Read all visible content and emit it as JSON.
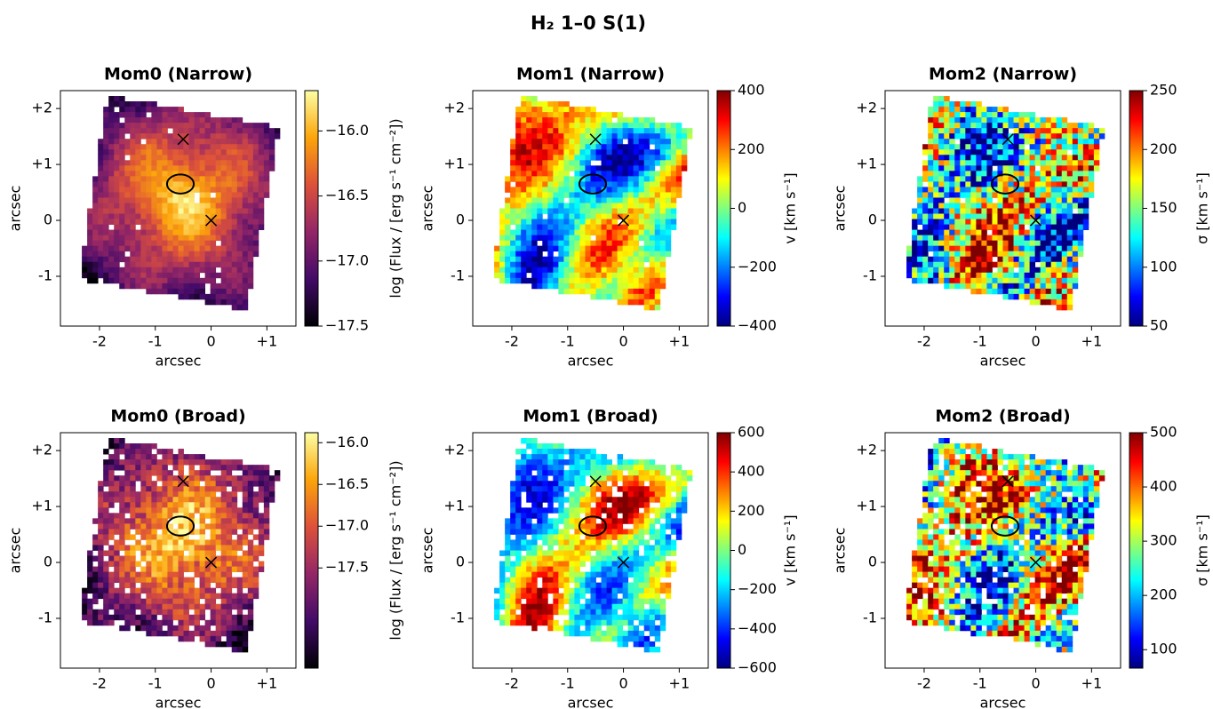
{
  "title": "H₂ 1–0 S(1)",
  "chart_data": [
    {
      "type": "heatmap",
      "title": "Mom0 (Narrow)",
      "xlabel": "arcsec",
      "ylabel": "arcsec",
      "colormap": "inferno",
      "xlim": [
        -2.7,
        1.52
      ],
      "ylim": [
        -1.89,
        2.32
      ],
      "xticks": [
        -2,
        -1,
        0,
        {
          "value": 1,
          "label": "+1"
        }
      ],
      "yticks": [
        -1,
        0,
        {
          "value": 1,
          "label": "+1"
        },
        {
          "value": 2,
          "label": "+2"
        }
      ],
      "clabel": "log (Flux / [erg s⁻¹ cm⁻²])",
      "clim": [
        -17.5,
        -15.69
      ],
      "cticks": [
        {
          "value": -16,
          "label": "−16.0"
        },
        {
          "value": -16.5,
          "label": "−16.5"
        },
        {
          "value": -17,
          "label": "−17.0"
        },
        {
          "value": -17.5,
          "label": "−17.5"
        }
      ],
      "markers": {
        "x": [
          -0.5,
          0
        ],
        "y": [
          1.45,
          0
        ]
      },
      "ellipse": {
        "x": -0.55,
        "y": 0.65,
        "width": 0.48,
        "height": 0.34
      }
    },
    {
      "type": "heatmap",
      "title": "Mom1 (Narrow)",
      "xlabel": "arcsec",
      "ylabel": "arcsec",
      "colormap": "jet",
      "xlim": [
        -2.7,
        1.52
      ],
      "ylim": [
        -1.89,
        2.32
      ],
      "xticks": [
        -2,
        -1,
        0,
        {
          "value": 1,
          "label": "+1"
        }
      ],
      "yticks": [
        -1,
        0,
        {
          "value": 1,
          "label": "+1"
        },
        {
          "value": 2,
          "label": "+2"
        }
      ],
      "clabel": "v [km s⁻¹]",
      "clim": [
        -400,
        400
      ],
      "cticks": [
        400,
        200,
        0,
        {
          "value": -200,
          "label": "−200"
        },
        {
          "value": -400,
          "label": "−400"
        }
      ],
      "markers": {
        "x": [
          -0.5,
          0
        ],
        "y": [
          1.45,
          0
        ]
      },
      "ellipse": {
        "x": -0.55,
        "y": 0.65,
        "width": 0.48,
        "height": 0.34
      }
    },
    {
      "type": "heatmap",
      "title": "Mom2 (Narrow)",
      "xlabel": "arcsec",
      "ylabel": "arcsec",
      "colormap": "jet",
      "xlim": [
        -2.7,
        1.52
      ],
      "ylim": [
        -1.89,
        2.32
      ],
      "xticks": [
        -2,
        -1,
        0,
        {
          "value": 1,
          "label": "+1"
        }
      ],
      "yticks": [
        -1,
        0,
        {
          "value": 1,
          "label": "+1"
        },
        {
          "value": 2,
          "label": "+2"
        }
      ],
      "clabel": "σ [km s⁻¹]",
      "clim": [
        50,
        250
      ],
      "cticks": [
        250,
        200,
        150,
        100,
        50
      ],
      "markers": {
        "x": [
          -0.5,
          0
        ],
        "y": [
          1.45,
          0
        ]
      },
      "ellipse": {
        "x": -0.55,
        "y": 0.65,
        "width": 0.48,
        "height": 0.34
      }
    },
    {
      "type": "heatmap",
      "title": "Mom0 (Broad)",
      "xlabel": "arcsec",
      "ylabel": "arcsec",
      "colormap": "inferno",
      "xlim": [
        -2.7,
        1.52
      ],
      "ylim": [
        -1.89,
        2.32
      ],
      "xticks": [
        -2,
        -1,
        0,
        {
          "value": 1,
          "label": "+1"
        }
      ],
      "yticks": [
        -1,
        0,
        {
          "value": 1,
          "label": "+1"
        },
        {
          "value": 2,
          "label": "+2"
        }
      ],
      "clabel": "log (Flux / [erg s⁻¹ cm⁻²])",
      "clim": [
        -18.7,
        -15.88
      ],
      "cticks": [
        {
          "value": -16,
          "label": "−16.0"
        },
        {
          "value": -16.5,
          "label": "−16.5"
        },
        {
          "value": -17,
          "label": "−17.0"
        },
        {
          "value": -17.5,
          "label": "−17.5"
        }
      ],
      "markers": {
        "x": [
          -0.5,
          0
        ],
        "y": [
          1.45,
          0
        ]
      },
      "ellipse": {
        "x": -0.55,
        "y": 0.65,
        "width": 0.48,
        "height": 0.34
      }
    },
    {
      "type": "heatmap",
      "title": "Mom1 (Broad)",
      "xlabel": "arcsec",
      "ylabel": "arcsec",
      "colormap": "jet",
      "xlim": [
        -2.7,
        1.52
      ],
      "ylim": [
        -1.89,
        2.32
      ],
      "xticks": [
        -2,
        -1,
        0,
        {
          "value": 1,
          "label": "+1"
        }
      ],
      "yticks": [
        -1,
        0,
        {
          "value": 1,
          "label": "+1"
        },
        {
          "value": 2,
          "label": "+2"
        }
      ],
      "clabel": "v [km s⁻¹]",
      "clim": [
        -600,
        600
      ],
      "cticks": [
        600,
        400,
        200,
        0,
        {
          "value": -200,
          "label": "−200"
        },
        {
          "value": -400,
          "label": "−400"
        },
        {
          "value": -600,
          "label": "−600"
        }
      ],
      "markers": {
        "x": [
          -0.5,
          0
        ],
        "y": [
          1.45,
          0
        ]
      },
      "ellipse": {
        "x": -0.55,
        "y": 0.65,
        "width": 0.48,
        "height": 0.34
      }
    },
    {
      "type": "heatmap",
      "title": "Mom2 (Broad)",
      "xlabel": "arcsec",
      "ylabel": "arcsec",
      "colormap": "jet",
      "xlim": [
        -2.7,
        1.52
      ],
      "ylim": [
        -1.89,
        2.32
      ],
      "xticks": [
        -2,
        -1,
        0,
        {
          "value": 1,
          "label": "+1"
        }
      ],
      "yticks": [
        -1,
        0,
        {
          "value": 1,
          "label": "+1"
        },
        {
          "value": 2,
          "label": "+2"
        }
      ],
      "clabel": "σ [km s⁻¹]",
      "clim": [
        66,
        500
      ],
      "cticks": [
        500,
        400,
        300,
        200,
        100
      ],
      "markers": {
        "x": [
          -0.5,
          0
        ],
        "y": [
          1.45,
          0
        ]
      },
      "ellipse": {
        "x": -0.55,
        "y": 0.65,
        "width": 0.48,
        "height": 0.34
      }
    }
  ]
}
